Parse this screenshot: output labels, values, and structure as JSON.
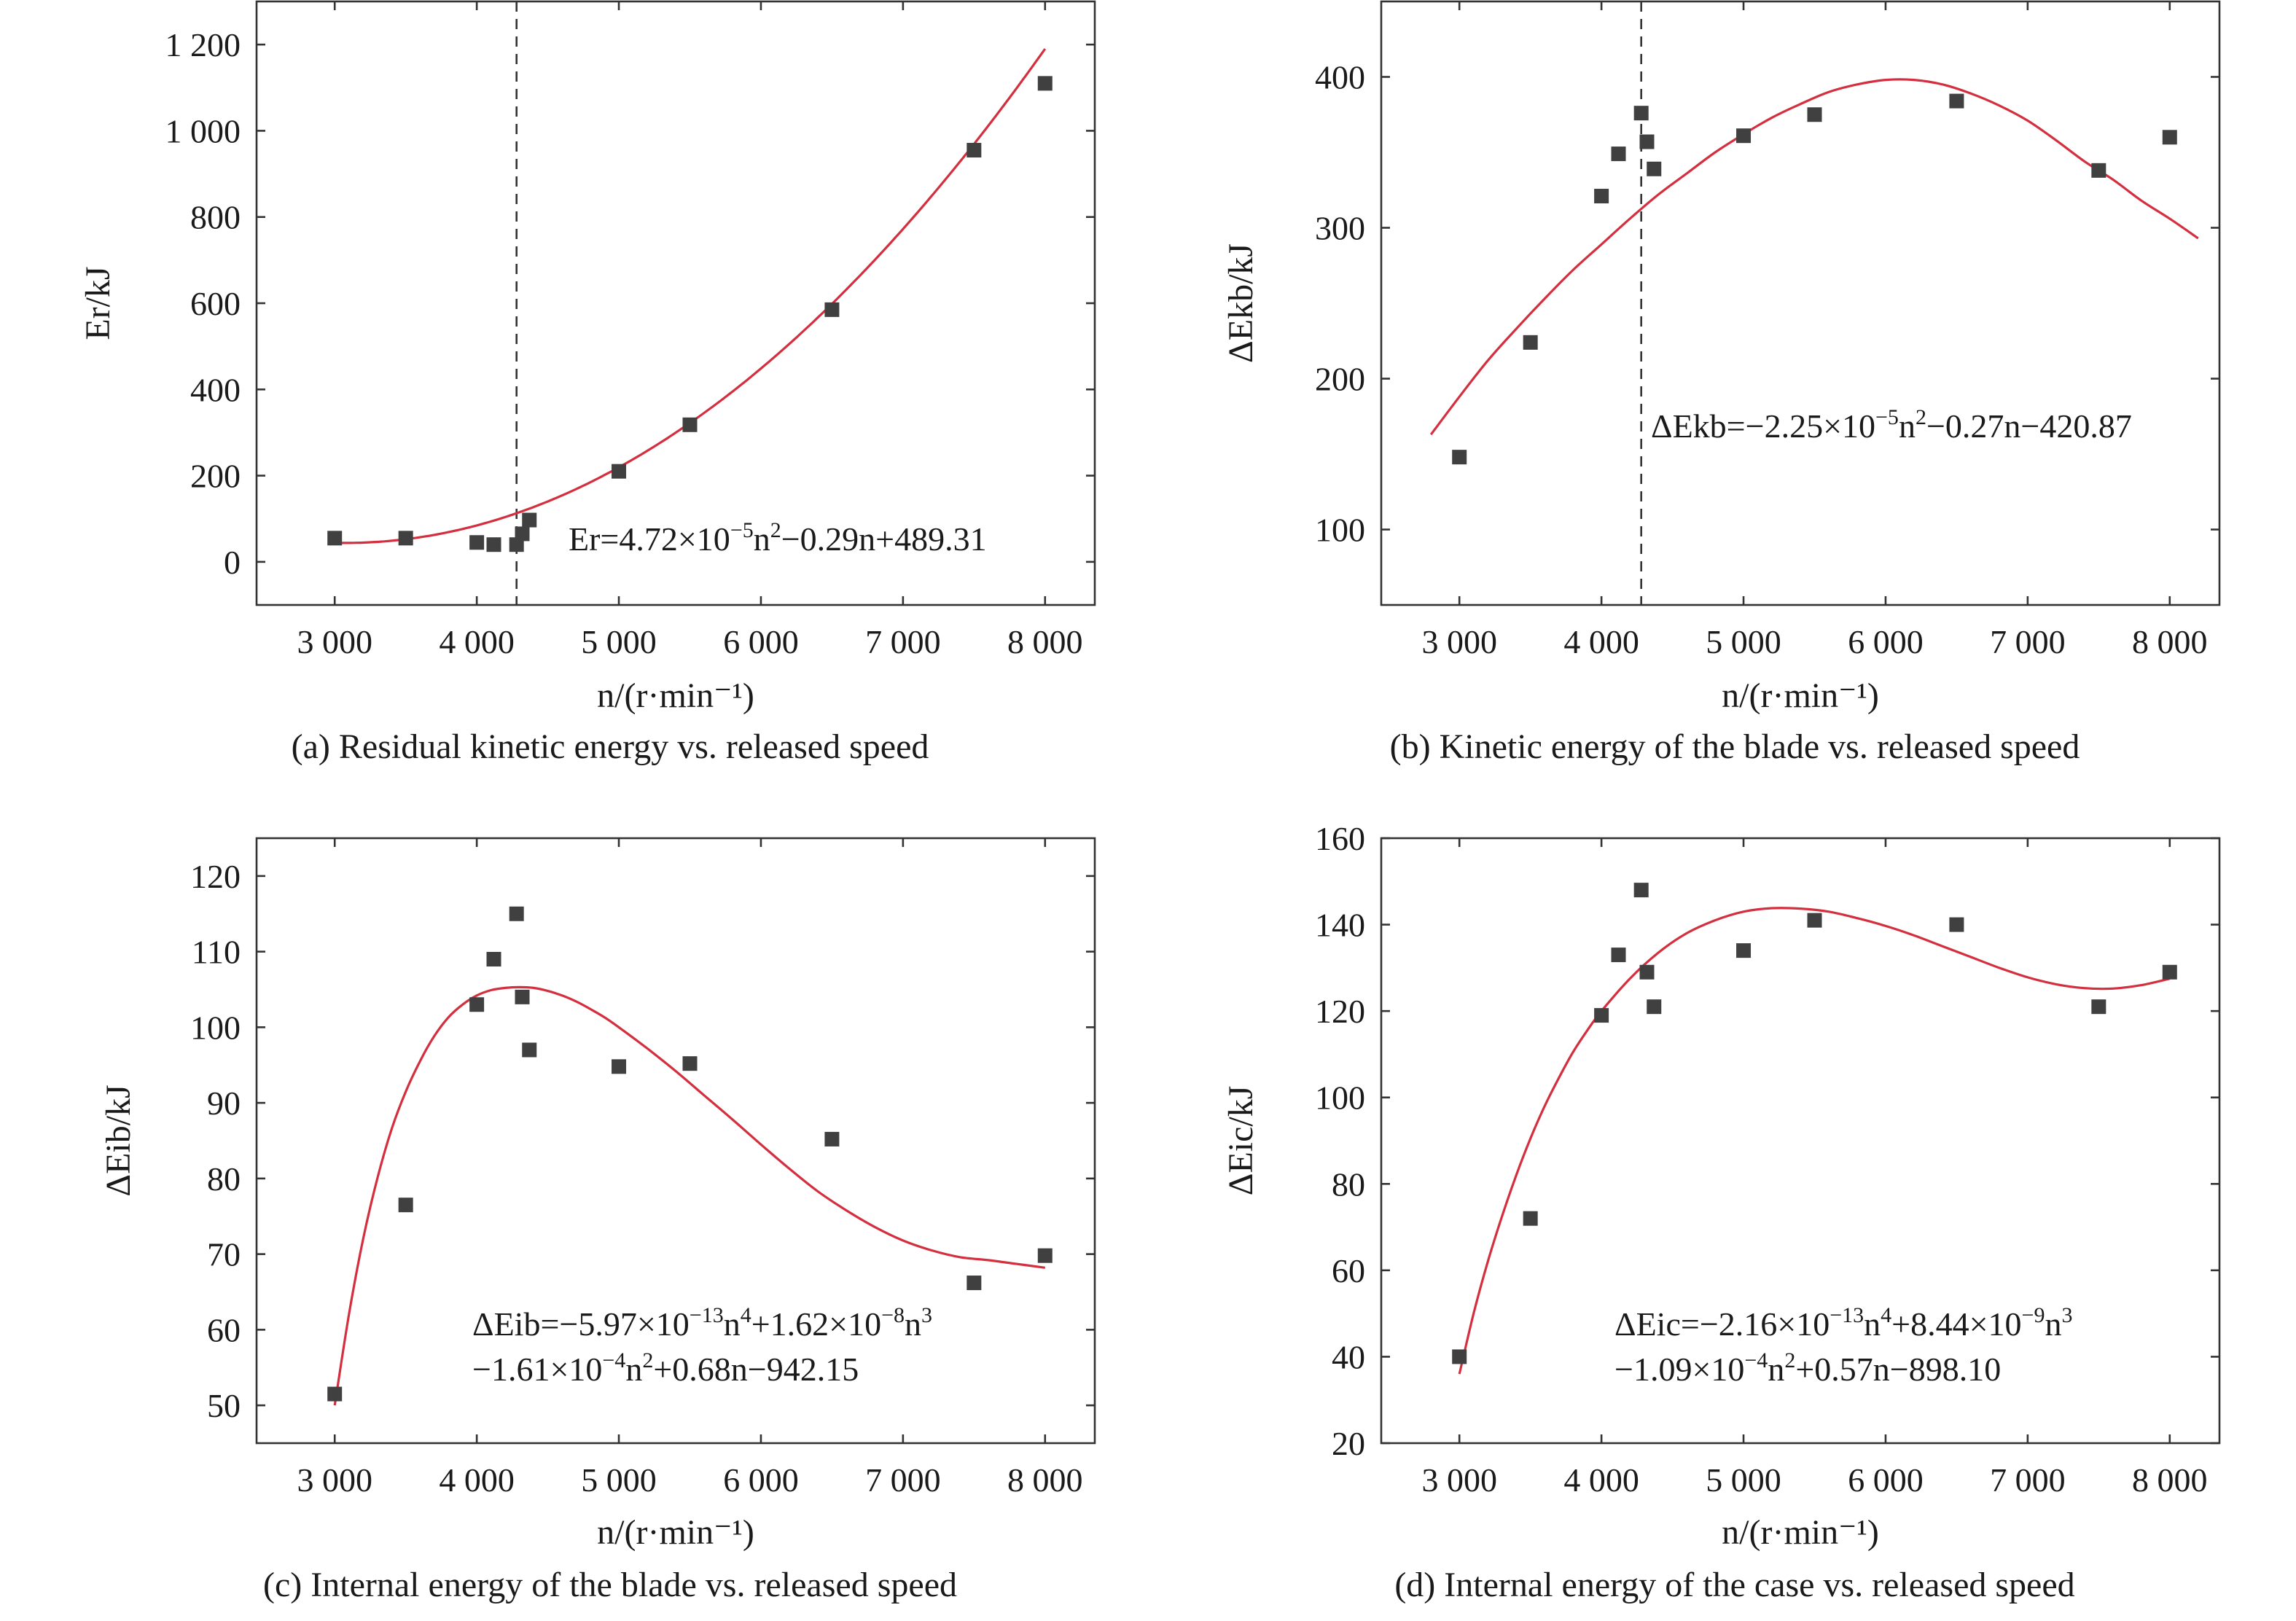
{
  "colors": {
    "fit_line": "#d32f3f",
    "marker": "#404040",
    "axis": "#333333"
  },
  "chart_data": [
    {
      "id": "a",
      "type": "scatter",
      "caption": "(a) Residual kinetic energy vs. released speed",
      "xlabel": "n/(r·min⁻¹)",
      "ylabel": "Er/kJ",
      "xlim": [
        2450,
        8350
      ],
      "ylim": [
        -100,
        1300
      ],
      "xticks": [
        3000,
        4000,
        5000,
        6000,
        7000,
        8000
      ],
      "xticklabels": [
        "3 000",
        "4 000",
        "5 000",
        "6 000",
        "7 000",
        "8 000"
      ],
      "yticks": [
        0,
        200,
        400,
        600,
        800,
        1000,
        1200
      ],
      "yticklabels": [
        "0",
        "200",
        "400",
        "600",
        "800",
        "1 000",
        "1 200"
      ],
      "x": [
        3000,
        3500,
        4000,
        4120,
        4280,
        4320,
        4370,
        5000,
        5500,
        6500,
        7500,
        8000
      ],
      "y": [
        55,
        55,
        45,
        40,
        40,
        65,
        97,
        210,
        318,
        585,
        955,
        1110
      ],
      "marker": "square",
      "fit": {
        "type": "poly",
        "coeffs": [
          489.31,
          -0.29,
          4.72e-05
        ],
        "domain": [
          3000,
          8000
        ]
      },
      "vline_x": 4280,
      "equation": [
        "Er=4.72×10⁻⁵n²−0.29n+489.31"
      ]
    },
    {
      "id": "b",
      "type": "scatter",
      "caption": "(b) Kinetic energy of the blade vs. released speed",
      "xlabel": "n/(r·min⁻¹)",
      "ylabel": "ΔEkb/kJ",
      "xlim": [
        2450,
        8350
      ],
      "ylim": [
        50,
        450
      ],
      "xticks": [
        3000,
        4000,
        5000,
        6000,
        7000,
        8000
      ],
      "xticklabels": [
        "3 000",
        "4 000",
        "5 000",
        "6 000",
        "7 000",
        "8 000"
      ],
      "yticks": [
        100,
        200,
        300,
        400
      ],
      "yticklabels": [
        "100",
        "200",
        "300",
        "400"
      ],
      "x": [
        3000,
        3500,
        4000,
        4120,
        4280,
        4320,
        4370,
        5000,
        5500,
        6500,
        7500,
        8000
      ],
      "y": [
        148,
        224,
        321,
        349,
        376,
        357,
        339,
        361,
        375,
        384,
        338,
        360
      ],
      "marker": "square",
      "fit": {
        "type": "points",
        "domain": [
          2800,
          8200
        ],
        "x": [
          2800,
          3000,
          3200,
          3400,
          3600,
          3800,
          4000,
          4200,
          4400,
          4600,
          4800,
          5000,
          5200,
          5400,
          5600,
          5800,
          6000,
          6200,
          6400,
          6600,
          6800,
          7000,
          7200,
          7400,
          7600,
          7800,
          8000,
          8200
        ],
        "y": [
          163,
          188,
          212,
          233,
          253,
          272,
          289,
          306,
          322,
          336,
          350,
          362,
          373,
          382,
          390,
          395,
          398,
          398,
          395,
          389,
          381,
          371,
          358,
          344,
          332,
          318,
          306,
          293
        ]
      },
      "vline_x": 4280,
      "equation": [
        "ΔEkb=−2.25×10⁻⁵n²−0.27n−420.87"
      ]
    },
    {
      "id": "c",
      "type": "scatter",
      "caption": "(c) Internal energy of the blade vs. released speed",
      "xlabel": "n/(r·min⁻¹)",
      "ylabel": "ΔEib/kJ",
      "xlim": [
        2450,
        8350
      ],
      "ylim": [
        45,
        125
      ],
      "xticks": [
        3000,
        4000,
        5000,
        6000,
        7000,
        8000
      ],
      "xticklabels": [
        "3 000",
        "4 000",
        "5 000",
        "6 000",
        "7 000",
        "8 000"
      ],
      "yticks": [
        50,
        60,
        70,
        80,
        90,
        100,
        110,
        120
      ],
      "yticklabels": [
        "50",
        "60",
        "70",
        "80",
        "90",
        "100",
        "110",
        "120"
      ],
      "x": [
        3000,
        3500,
        4000,
        4120,
        4280,
        4320,
        4370,
        5000,
        5500,
        6500,
        7500,
        8000
      ],
      "y": [
        51.5,
        76.5,
        103,
        109,
        115,
        104,
        97,
        94.8,
        95.2,
        85.2,
        66.2,
        69.8
      ],
      "marker": "square",
      "fit": {
        "type": "points",
        "domain": [
          3000,
          8000
        ],
        "x": [
          3000,
          3100,
          3200,
          3300,
          3400,
          3500,
          3600,
          3700,
          3800,
          3900,
          4000,
          4100,
          4200,
          4300,
          4400,
          4500,
          4600,
          4700,
          4800,
          4900,
          5000,
          5200,
          5400,
          5600,
          5800,
          6000,
          6200,
          6400,
          6600,
          6800,
          7000,
          7200,
          7400,
          7600,
          7800,
          8000
        ],
        "y": [
          50,
          62,
          72,
          80,
          86.5,
          91.5,
          95.5,
          98.8,
          101.3,
          103,
          104.2,
          104.9,
          105.2,
          105.3,
          105.2,
          104.8,
          104.2,
          103.4,
          102.4,
          101.3,
          100,
          97.2,
          94.2,
          91,
          87.8,
          84.5,
          81.3,
          78.3,
          75.8,
          73.6,
          71.8,
          70.5,
          69.6,
          69.2,
          68.7,
          68.2
        ]
      },
      "equation": [
        "ΔEib=−5.97×10⁻¹³n⁴+1.62×10⁻⁸n³",
        "−1.61×10⁻⁴n²+0.68n−942.15"
      ]
    },
    {
      "id": "d",
      "type": "scatter",
      "caption": "(d) Internal energy of the case vs. released speed",
      "xlabel": "n/(r·min⁻¹)",
      "ylabel": "ΔEic/kJ",
      "xlim": [
        2450,
        8350
      ],
      "ylim": [
        20,
        160
      ],
      "xticks": [
        3000,
        4000,
        5000,
        6000,
        7000,
        8000
      ],
      "xticklabels": [
        "3 000",
        "4 000",
        "5 000",
        "6 000",
        "7 000",
        "8 000"
      ],
      "yticks": [
        20,
        40,
        60,
        80,
        100,
        120,
        140,
        160
      ],
      "yticklabels": [
        "20",
        "40",
        "60",
        "80",
        "100",
        "120",
        "140",
        "160"
      ],
      "x": [
        3000,
        3500,
        4000,
        4120,
        4280,
        4320,
        4370,
        5000,
        5500,
        6500,
        7500,
        8000
      ],
      "y": [
        40,
        72,
        119,
        133,
        148,
        129,
        121,
        134,
        141,
        140,
        121,
        129
      ],
      "marker": "square",
      "fit": {
        "type": "points",
        "domain": [
          3000,
          8000
        ],
        "x": [
          3000,
          3100,
          3200,
          3300,
          3400,
          3500,
          3600,
          3700,
          3800,
          3900,
          4000,
          4200,
          4400,
          4600,
          4800,
          5000,
          5200,
          5400,
          5600,
          5800,
          6000,
          6200,
          6400,
          6600,
          6800,
          7000,
          7200,
          7400,
          7600,
          7800,
          8000
        ],
        "y": [
          36,
          50,
          62,
          72.5,
          82,
          90.5,
          98,
          104.5,
          110.5,
          115.5,
          120,
          127.5,
          133.5,
          138,
          141,
          143,
          143.8,
          143.7,
          143,
          141.5,
          139.7,
          137.5,
          135,
          132.5,
          130,
          127.8,
          126.2,
          125.3,
          125.2,
          126,
          127.5
        ]
      },
      "equation": [
        "ΔEic=−2.16×10⁻¹³n⁴+8.44×10⁻⁹n³",
        "−1.09×10⁻⁴n²+0.57n−898.10"
      ]
    }
  ]
}
